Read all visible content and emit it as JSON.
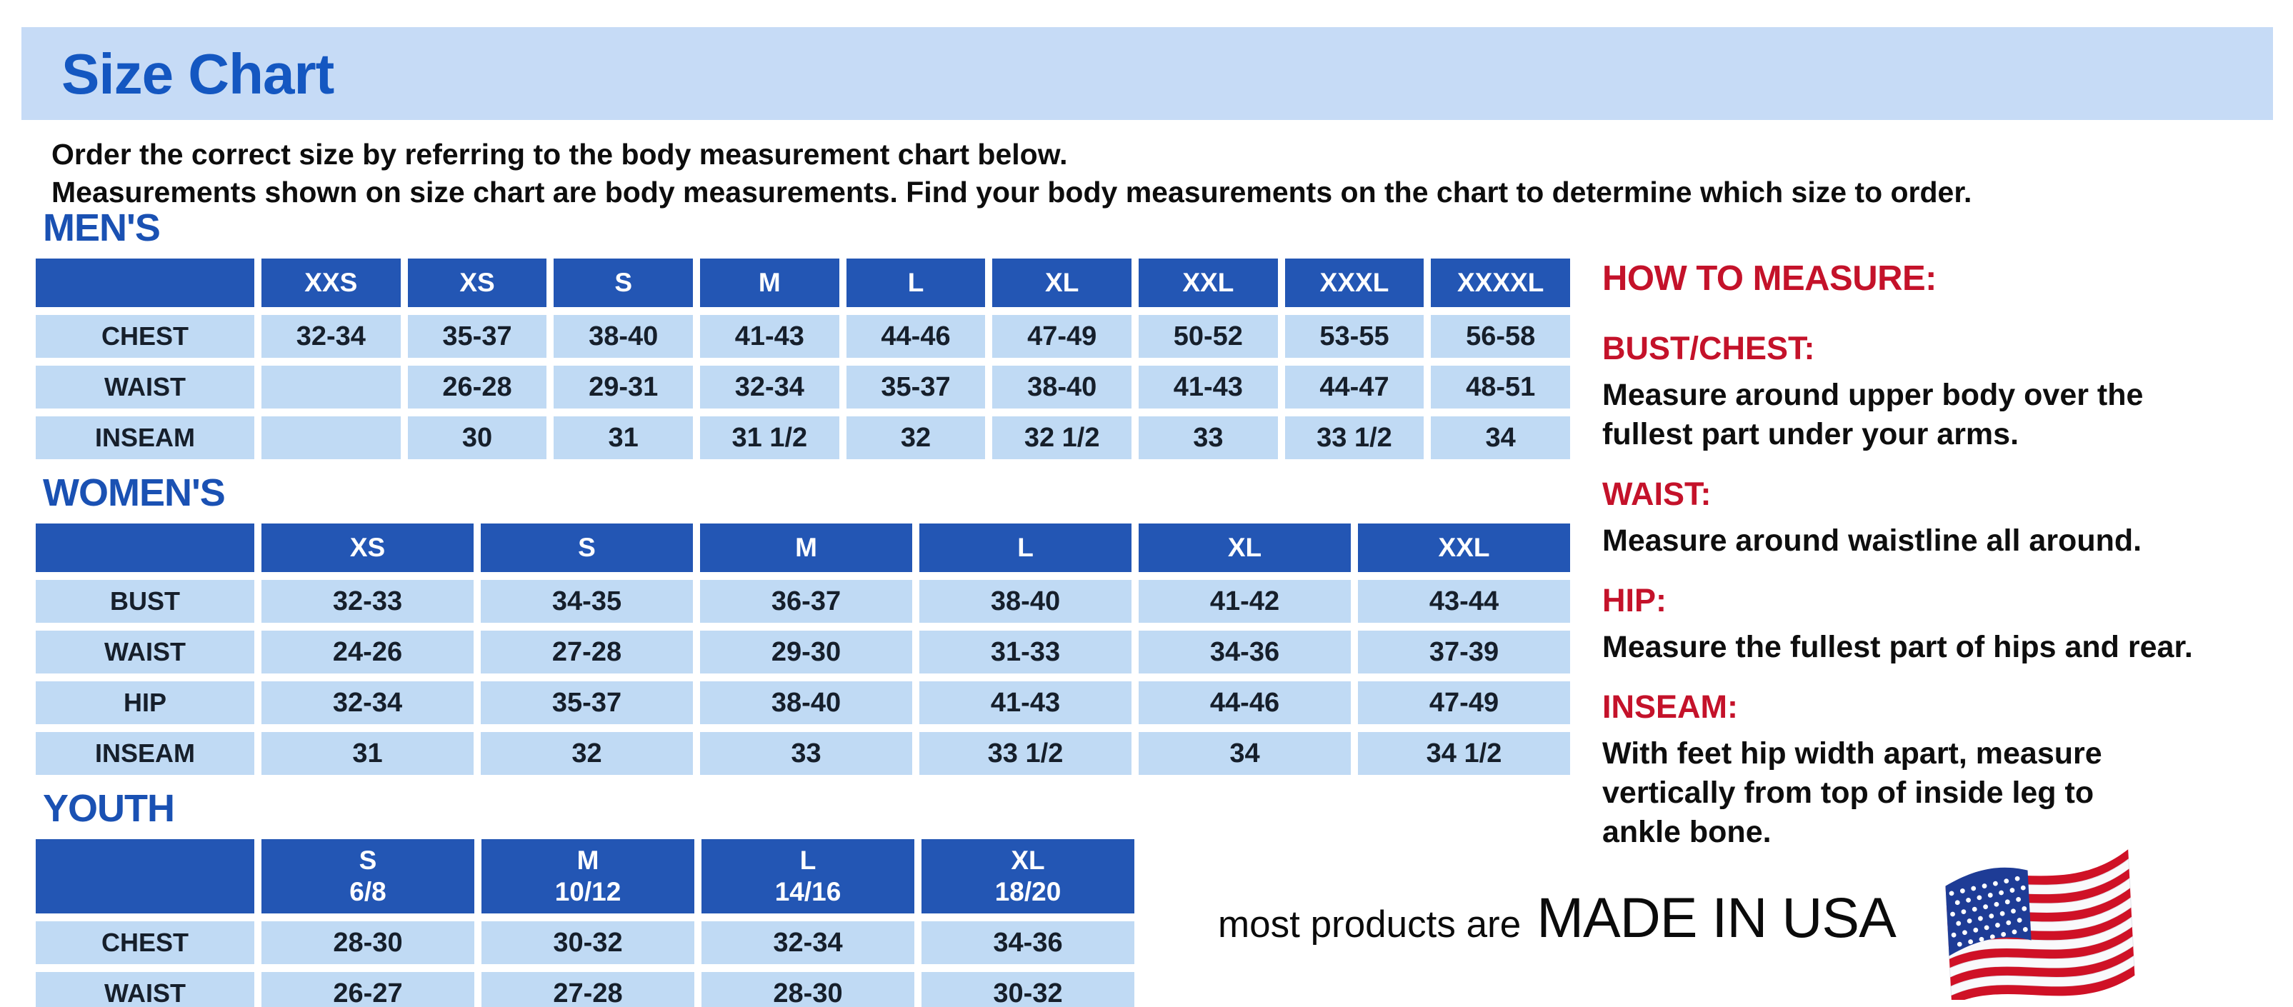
{
  "page": {
    "title": "Size Chart",
    "intro_line1": "Order the correct size by referring to the body measurement chart below.",
    "intro_line2": "Measurements shown on size chart are body measurements.  Find your body measurements on the chart to determine which size to order."
  },
  "colors": {
    "band_bg": "#c6dbf6",
    "title_blue": "#1457c1",
    "section_blue": "#1a51b3",
    "table_header_blue": "#2356b4",
    "cell_light_blue": "#c0daf4",
    "accent_red": "#c4122a"
  },
  "tables": {
    "mens": {
      "heading": "MEN'S",
      "columns": [
        "",
        "XXS",
        "XS",
        "S",
        "M",
        "L",
        "XL",
        "XXL",
        "XXXL",
        "XXXXL"
      ],
      "rows": [
        {
          "label": "CHEST",
          "values": [
            "32-34",
            "35-37",
            "38-40",
            "41-43",
            "44-46",
            "47-49",
            "50-52",
            "53-55",
            "56-58"
          ]
        },
        {
          "label": "WAIST",
          "values": [
            "",
            "26-28",
            "29-31",
            "32-34",
            "35-37",
            "38-40",
            "41-43",
            "44-47",
            "48-51"
          ]
        },
        {
          "label": "INSEAM",
          "values": [
            "",
            "30",
            "31",
            "31 1/2",
            "32",
            "32 1/2",
            "33",
            "33 1/2",
            "34"
          ]
        }
      ]
    },
    "womens": {
      "heading": "WOMEN'S",
      "columns": [
        "",
        "XS",
        "S",
        "M",
        "L",
        "XL",
        "XXL"
      ],
      "rows": [
        {
          "label": "BUST",
          "values": [
            "32-33",
            "34-35",
            "36-37",
            "38-40",
            "41-42",
            "43-44"
          ]
        },
        {
          "label": "WAIST",
          "values": [
            "24-26",
            "27-28",
            "29-30",
            "31-33",
            "34-36",
            "37-39"
          ]
        },
        {
          "label": "HIP",
          "values": [
            "32-34",
            "35-37",
            "38-40",
            "41-43",
            "44-46",
            "47-49"
          ]
        },
        {
          "label": "INSEAM",
          "values": [
            "31",
            "32",
            "33",
            "33 1/2",
            "34",
            "34 1/2"
          ]
        }
      ]
    },
    "youth": {
      "heading": "YOUTH",
      "columns": [
        "",
        "S\n6/8",
        "M\n10/12",
        "L\n14/16",
        "XL\n18/20"
      ],
      "rows": [
        {
          "label": "CHEST",
          "values": [
            "28-30",
            "30-32",
            "32-34",
            "34-36"
          ]
        },
        {
          "label": "WAIST",
          "values": [
            "26-27",
            "27-28",
            "28-30",
            "30-32"
          ]
        }
      ]
    }
  },
  "how_to_measure": {
    "title": "HOW TO MEASURE:",
    "items": [
      {
        "label": "BUST/CHEST:",
        "text": "Measure around upper body over the\nfullest part under your arms."
      },
      {
        "label": "WAIST:",
        "text": "Measure around waistline all around."
      },
      {
        "label": "HIP:",
        "text": "Measure the fullest part of hips and rear."
      },
      {
        "label": "INSEAM:",
        "text": "With feet hip width apart, measure\nvertically from top of inside leg to\nankle bone."
      }
    ]
  },
  "footer": {
    "prefix": "most products are",
    "emphasis": "MADE IN USA",
    "flag_icon": "us-flag-icon"
  }
}
